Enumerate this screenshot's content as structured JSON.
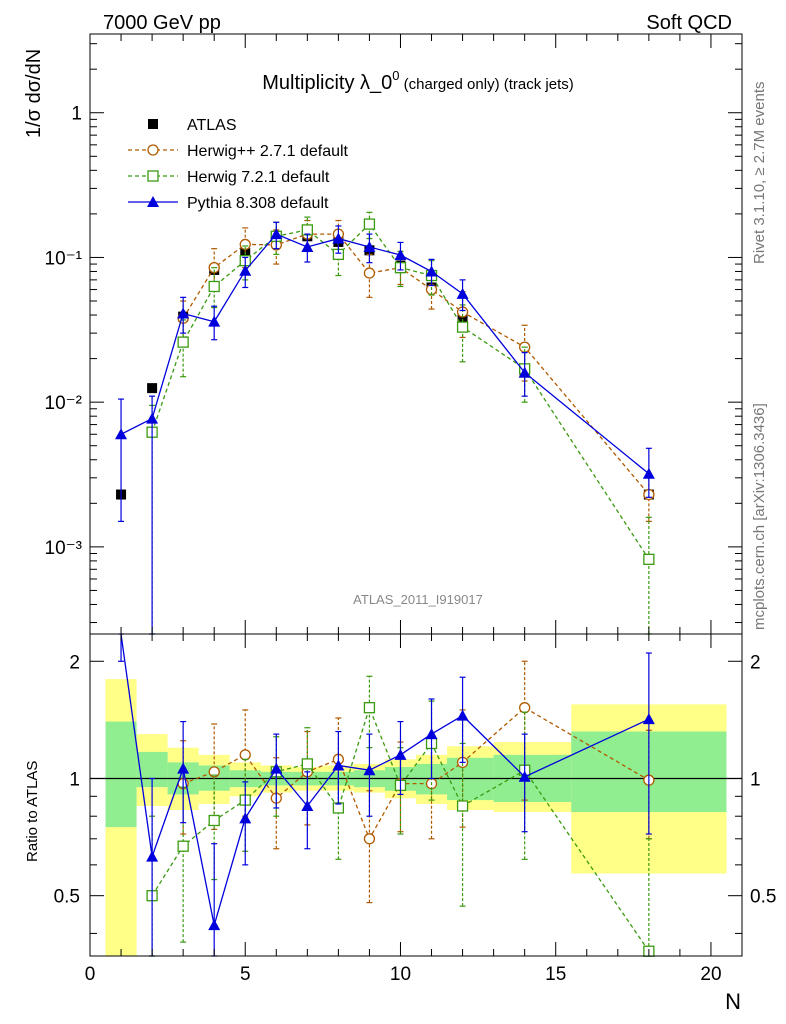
{
  "header": {
    "left": "7000 GeV pp",
    "right": "Soft QCD"
  },
  "side": {
    "rivet": "Rivet 3.1.10, ≥ 2.7M events",
    "mcplots": "mcplots.cern.ch [arXiv:1306.3436]"
  },
  "chart_data": [
    {
      "type": "scatter",
      "panel": "main",
      "title_main": "Multiplicity λ_0",
      "title_sup": "0",
      "title_suffix": " (charged only) (track jets)",
      "ylabel": "1/σ dσ/dN",
      "analysis_label": "ATLAS_2011_I919017",
      "yscale": "log",
      "ylim": [
        0.00025,
        3.5
      ],
      "xlim": [
        0,
        21
      ],
      "ytick_labels": [
        "10⁻³",
        "10⁻²",
        "10⁻¹",
        "1"
      ],
      "legend_placement": "top-left",
      "series": [
        {
          "name": "ATLAS",
          "color": "#000000",
          "marker": "filled-square",
          "x": [
            1,
            2,
            3,
            4,
            5,
            6,
            7,
            8,
            9,
            10,
            11,
            12,
            14,
            18
          ],
          "y": [
            0.0023,
            0.0125,
            0.039,
            0.082,
            0.107,
            0.138,
            0.14,
            0.128,
            0.112,
            0.088,
            0.062,
            0.038,
            0.016,
            0.0023
          ]
        },
        {
          "name": "Herwig++ 2.7.1 default",
          "color": "#b05a00",
          "marker": "open-circle",
          "x": [
            3,
            4,
            5,
            6,
            7,
            8,
            9,
            10,
            11,
            12,
            14,
            18
          ],
          "y": [
            0.038,
            0.085,
            0.123,
            0.122,
            0.145,
            0.145,
            0.078,
            0.085,
            0.06,
            0.042,
            0.024,
            0.0023
          ],
          "err_lo": [
            0.028,
            0.06,
            0.085,
            0.09,
            0.11,
            0.11,
            0.053,
            0.065,
            0.044,
            0.028,
            0.014,
            0.0015
          ],
          "err_hi": [
            0.05,
            0.115,
            0.16,
            0.155,
            0.18,
            0.18,
            0.105,
            0.11,
            0.08,
            0.058,
            0.034,
            0.0031
          ]
        },
        {
          "name": "Herwig 7.2.1 default",
          "color": "#3a9a10",
          "marker": "open-square",
          "x": [
            2,
            3,
            4,
            5,
            6,
            7,
            8,
            9,
            10,
            11,
            12,
            14,
            18
          ],
          "y": [
            0.0062,
            0.026,
            0.063,
            0.095,
            0.14,
            0.155,
            0.105,
            0.17,
            0.085,
            0.075,
            0.033,
            0.017,
            0.00082
          ],
          "err_lo": [
            0.0001,
            0.015,
            0.045,
            0.07,
            0.105,
            0.12,
            0.075,
            0.135,
            0.063,
            0.055,
            0.019,
            0.01,
            0.0001
          ],
          "err_hi": [
            0.0095,
            0.037,
            0.085,
            0.12,
            0.175,
            0.19,
            0.135,
            0.205,
            0.11,
            0.095,
            0.047,
            0.024,
            0.0016
          ]
        },
        {
          "name": "Pythia 8.308 default",
          "color": "#0000dd",
          "marker": "filled-triangle",
          "x": [
            1,
            2,
            3,
            4,
            5,
            6,
            7,
            8,
            9,
            10,
            11,
            12,
            14,
            18
          ],
          "y": [
            0.006,
            0.0077,
            0.041,
            0.036,
            0.081,
            0.145,
            0.118,
            0.135,
            0.118,
            0.104,
            0.08,
            0.056,
            0.016,
            0.0032
          ],
          "err_lo": [
            0.0015,
            0.0001,
            0.03,
            0.027,
            0.062,
            0.115,
            0.093,
            0.107,
            0.092,
            0.082,
            0.064,
            0.043,
            0.011,
            0.0022
          ],
          "err_hi": [
            0.0105,
            0.011,
            0.053,
            0.046,
            0.1,
            0.175,
            0.145,
            0.165,
            0.145,
            0.127,
            0.097,
            0.07,
            0.022,
            0.0048
          ]
        }
      ]
    },
    {
      "type": "scatter",
      "panel": "ratio",
      "ylabel": "Ratio to ATLAS",
      "xlabel": "N",
      "ylim": [
        0.35,
        2.35
      ],
      "xlim": [
        0,
        21
      ],
      "xtick_labels": [
        "0",
        "5",
        "10",
        "15",
        "20"
      ],
      "ytick_labels": [
        "0.5",
        "1",
        "2"
      ],
      "reference_line": 1,
      "bands": {
        "edges": [
          0.5,
          1.5,
          2.5,
          3.5,
          4.5,
          5.5,
          6.5,
          7.5,
          8.5,
          9.5,
          10.5,
          11.5,
          13,
          15.5,
          20.5
        ],
        "green_lo": [
          0.75,
          0.95,
          0.91,
          0.93,
          0.95,
          0.96,
          0.96,
          0.96,
          0.95,
          0.93,
          0.91,
          0.88,
          0.87,
          0.82
        ],
        "green_hi": [
          1.4,
          1.17,
          1.1,
          1.08,
          1.05,
          1.04,
          1.04,
          1.04,
          1.05,
          1.07,
          1.09,
          1.13,
          1.15,
          1.32
        ],
        "yellow_lo": [
          0.35,
          0.85,
          0.83,
          0.86,
          0.9,
          0.92,
          0.93,
          0.93,
          0.92,
          0.89,
          0.86,
          0.83,
          0.82,
          0.57
        ],
        "yellow_hi": [
          1.8,
          1.3,
          1.2,
          1.15,
          1.1,
          1.08,
          1.07,
          1.08,
          1.09,
          1.12,
          1.15,
          1.21,
          1.24,
          1.55
        ],
        "green_color": "#90ee90",
        "yellow_color": "#ffff88"
      },
      "series": [
        {
          "name": "Herwig++ 2.7.1 default",
          "color": "#b05a00",
          "marker": "open-circle",
          "x": [
            3,
            4,
            5,
            6,
            7,
            8,
            9,
            10,
            11,
            12,
            14,
            18
          ],
          "y": [
            0.97,
            1.04,
            1.15,
            0.89,
            1.04,
            1.12,
            0.7,
            0.97,
            0.97,
            1.1,
            1.52,
            0.99
          ],
          "err_lo": [
            0.72,
            0.74,
            0.8,
            0.66,
            0.76,
            0.83,
            0.48,
            0.73,
            0.7,
            0.75,
            0.88,
            0.7
          ],
          "err_hi": [
            1.25,
            1.38,
            1.5,
            1.13,
            1.32,
            1.43,
            0.93,
            1.24,
            1.29,
            1.5,
            2.0,
            1.33
          ]
        },
        {
          "name": "Herwig 7.2.1 default",
          "color": "#3a9a10",
          "marker": "open-square",
          "x": [
            2,
            3,
            4,
            5,
            6,
            7,
            8,
            9,
            10,
            11,
            12,
            14,
            18
          ],
          "y": [
            0.5,
            0.67,
            0.78,
            0.88,
            1.04,
            1.09,
            0.84,
            1.52,
            0.96,
            1.23,
            0.85,
            1.05,
            0.36
          ],
          "err_lo": [
            0.35,
            0.38,
            0.55,
            0.65,
            0.8,
            0.84,
            0.62,
            1.2,
            0.72,
            0.88,
            0.47,
            0.62,
            0.35
          ],
          "err_hi": [
            0.8,
            0.95,
            1.02,
            1.12,
            1.28,
            1.35,
            1.08,
            1.83,
            1.2,
            1.58,
            1.23,
            1.48,
            0.7
          ]
        },
        {
          "name": "Pythia 8.308 default",
          "color": "#0000dd",
          "marker": "filled-triangle",
          "x": [
            1,
            2,
            3,
            4,
            5,
            6,
            7,
            8,
            9,
            10,
            11,
            12,
            14,
            18
          ],
          "y": [
            2.4,
            0.63,
            1.06,
            0.42,
            0.79,
            1.06,
            0.85,
            1.08,
            1.05,
            1.15,
            1.3,
            1.45,
            1.01,
            1.42
          ],
          "err_lo": [
            2.0,
            0.35,
            0.77,
            0.35,
            0.6,
            0.84,
            0.66,
            0.86,
            0.8,
            0.91,
            1.0,
            1.1,
            0.73,
            0.72
          ],
          "err_hi": [
            2.4,
            1.0,
            1.4,
            0.68,
            0.98,
            1.3,
            1.04,
            1.32,
            1.3,
            1.4,
            1.6,
            1.82,
            1.3,
            2.1
          ]
        }
      ]
    }
  ]
}
